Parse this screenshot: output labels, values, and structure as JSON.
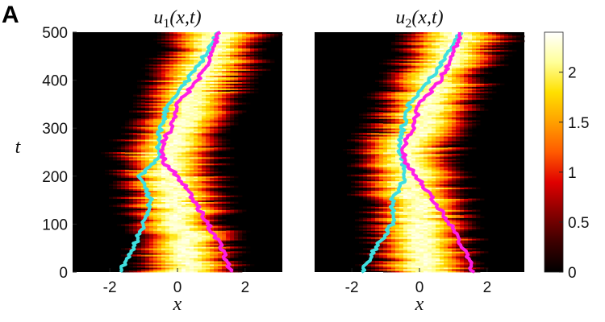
{
  "panel_label": "A",
  "colors": {
    "heatmap_scale": [
      "#000000",
      "#3c0000",
      "#8a0000",
      "#e00000",
      "#ff5a00",
      "#ffa000",
      "#ffe000",
      "#ffff9a",
      "#ffffff"
    ],
    "track_cyan": "#3fdfe0",
    "track_magenta": "#ff1ee6"
  },
  "chart_data": [
    {
      "type": "heatmap",
      "title": "u_1(x,t)",
      "xlabel": "x",
      "ylabel": "t",
      "xlim": [
        -3.1,
        3.1
      ],
      "ylim": [
        0,
        500
      ],
      "xticks": [
        "-2",
        "0",
        "2"
      ],
      "yticks": [
        "0",
        "100",
        "200",
        "300",
        "400",
        "500"
      ],
      "colormap": "hot",
      "colorbar": {
        "range": [
          0,
          2.4
        ],
        "ticks": [
          "0",
          "0.5",
          "1",
          "1.5",
          "2"
        ]
      },
      "band_center": {
        "t": [
          0,
          100,
          200,
          250,
          300,
          400,
          500
        ],
        "x": [
          0.4,
          0.1,
          -0.2,
          -0.3,
          0.1,
          0.6,
          1.3
        ]
      },
      "band_halfwidth": 1.6,
      "series": [
        {
          "color": "cyan",
          "t": [
            0,
            50,
            100,
            150,
            200,
            240,
            260,
            300,
            350,
            400,
            450,
            500
          ],
          "x": [
            -1.7,
            -1.3,
            -1.0,
            -0.8,
            -1.1,
            -0.5,
            -0.6,
            -0.5,
            -0.3,
            0.3,
            0.8,
            1.2
          ]
        },
        {
          "color": "magenta",
          "t": [
            0,
            50,
            100,
            150,
            200,
            230,
            260,
            300,
            350,
            400,
            450,
            500
          ],
          "x": [
            1.6,
            1.3,
            0.9,
            0.5,
            0.0,
            -0.4,
            -0.5,
            -0.2,
            0.0,
            0.6,
            1.0,
            1.2
          ]
        }
      ]
    },
    {
      "type": "heatmap",
      "title": "u_2(x,t)",
      "xlabel": "x",
      "ylabel": "",
      "xlim": [
        -3.1,
        3.1
      ],
      "ylim": [
        0,
        500
      ],
      "xticks": [
        "-2",
        "0",
        "2"
      ],
      "yticks": [],
      "colormap": "hot",
      "band_center": {
        "t": [
          0,
          100,
          200,
          250,
          300,
          400,
          500
        ],
        "x": [
          0.2,
          0.0,
          -0.2,
          -0.4,
          0.0,
          0.5,
          1.2
        ]
      },
      "band_halfwidth": 1.6,
      "series": [
        {
          "color": "cyan",
          "t": [
            0,
            50,
            100,
            150,
            200,
            240,
            260,
            300,
            350,
            400,
            450,
            500
          ],
          "x": [
            -1.7,
            -1.3,
            -0.8,
            -0.8,
            -0.4,
            -0.5,
            -0.6,
            -0.5,
            -0.3,
            0.3,
            0.8,
            1.2
          ]
        },
        {
          "color": "magenta",
          "t": [
            0,
            50,
            100,
            150,
            200,
            230,
            260,
            300,
            350,
            400,
            450,
            500
          ],
          "x": [
            1.6,
            1.3,
            0.9,
            0.4,
            -0.1,
            -0.4,
            -0.5,
            -0.2,
            0.0,
            0.6,
            1.0,
            1.2
          ]
        }
      ]
    }
  ]
}
